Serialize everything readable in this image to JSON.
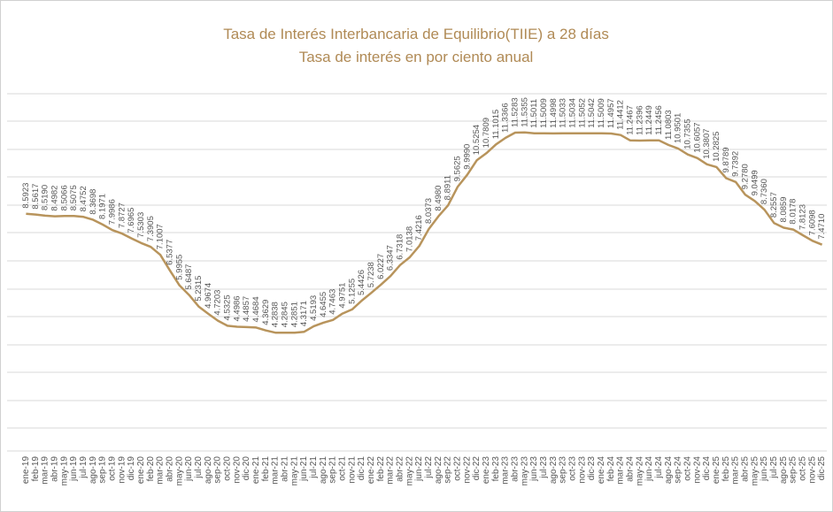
{
  "chart_data": {
    "type": "line",
    "title": "Tasa de Interés Interbancaria de Equilibrio(TIIE) a 28 días",
    "subtitle": "Tasa de interés en por ciento anual",
    "categories": [
      "ene-19",
      "feb-19",
      "mar-19",
      "abr-19",
      "may-19",
      "jun-19",
      "jul-19",
      "ago-19",
      "sep-19",
      "oct-19",
      "nov-19",
      "dic-19",
      "ene-20",
      "feb-20",
      "mar-20",
      "abr-20",
      "may-20",
      "jun-20",
      "jul-20",
      "ago-20",
      "sep-20",
      "oct-20",
      "nov-20",
      "dic-20",
      "ene-21",
      "feb-21",
      "mar-21",
      "abr-21",
      "may-21",
      "jun-21",
      "jul-21",
      "ago-21",
      "sep-21",
      "oct-21",
      "nov-21",
      "dic-21",
      "ene-22",
      "feb-22",
      "mar-22",
      "abr-22",
      "may-22",
      "jun-22",
      "jul-22",
      "ago-22",
      "sep-22",
      "oct-22",
      "nov-22",
      "dic-22",
      "ene-23",
      "feb-23",
      "mar-23",
      "abr-23",
      "may-23",
      "jun-23",
      "jul-23",
      "ago-23",
      "sep-23",
      "oct-23",
      "nov-23",
      "dic-23",
      "ene-24",
      "feb-24",
      "mar-24",
      "abr-24",
      "may-24",
      "jun-24",
      "jul-24",
      "ago-24",
      "sep-24",
      "oct-24",
      "nov-24",
      "dic-24",
      "ene-25",
      "feb-25",
      "mar-25",
      "abr-25",
      "may-25",
      "jun-25",
      "jul-25",
      "ago-25",
      "sep-25",
      "oct-25",
      "nov-25",
      "dic-25"
    ],
    "values": [
      8.5923,
      8.5617,
      8.519,
      8.4982,
      8.5066,
      8.5075,
      8.4752,
      8.3698,
      8.1971,
      7.9986,
      7.8727,
      7.6965,
      7.5303,
      7.3905,
      7.1007,
      6.5377,
      5.9955,
      5.6487,
      5.2315,
      4.9674,
      4.7203,
      4.5325,
      4.4986,
      4.4857,
      4.4684,
      4.3629,
      4.2838,
      4.2845,
      4.2851,
      4.3171,
      4.5193,
      4.6455,
      4.7463,
      4.9751,
      5.1255,
      5.4426,
      5.7238,
      6.0227,
      6.3347,
      6.7318,
      7.0138,
      7.4216,
      8.0373,
      8.498,
      8.8911,
      9.5625,
      9.999,
      10.5254,
      10.7809,
      11.1015,
      11.3366,
      11.5283,
      11.5355,
      11.5011,
      11.5009,
      11.4998,
      11.5033,
      11.5034,
      11.5052,
      11.5042,
      11.5009,
      11.4957,
      11.4412,
      11.2467,
      11.2396,
      11.2449,
      11.2456,
      11.0803,
      10.9501,
      10.7355,
      10.6057,
      10.3807,
      10.2825,
      9.8789,
      9.7392,
      9.278,
      9.0499,
      8.736,
      8.2557,
      8.0859,
      8.0178,
      7.8123,
      7.6098,
      7.471
    ],
    "value_labels": [
      "8.5923",
      "8.5617",
      "8.5190",
      "8.4982",
      "8.5066",
      "8.5075",
      "8.4752",
      "8.3698",
      "8.1971",
      "7.9986",
      "7.8727",
      "7.6965",
      "7.5303",
      "7.3905",
      "7.1007",
      "6.5377",
      "5.9955",
      "5.6487",
      "5.2315",
      "4.9674",
      "4.7203",
      "4.5325",
      "4.4986",
      "4.4857",
      "4.4684",
      "4.3629",
      "4.2838",
      "4.2845",
      "4.2851",
      "4.3171",
      "4.5193",
      "4.6455",
      "4.7463",
      "4.9751",
      "5.1255",
      "5.4426",
      "5.7238",
      "6.0227",
      "6.3347",
      "6.7318",
      "7.0138",
      "7.4216",
      "8.0373",
      "8.4980",
      "8.8911",
      "9.5625",
      "9.9990",
      "10.5254",
      "10.7809",
      "11.1015",
      "11.3366",
      "11.5283",
      "11.5355",
      "11.5011",
      "11.5009",
      "11.4998",
      "11.5033",
      "11.5034",
      "11.5052",
      "11.5042",
      "11.5009",
      "11.4957",
      "11.4412",
      "11.2467",
      "11.2396",
      "11.2449",
      "11.2456",
      "11.0803",
      "10.9501",
      "10.7355",
      "10.6057",
      "10.3807",
      "10.2825",
      "9.8789",
      "9.7392",
      "9.2780",
      "9.0499",
      "8.7360",
      "8.2557",
      "8.0859",
      "8.0178",
      "7.8123",
      "7.6098",
      "7.4710"
    ],
    "color": "#b8945c",
    "ylim": [
      0,
      13
    ]
  }
}
